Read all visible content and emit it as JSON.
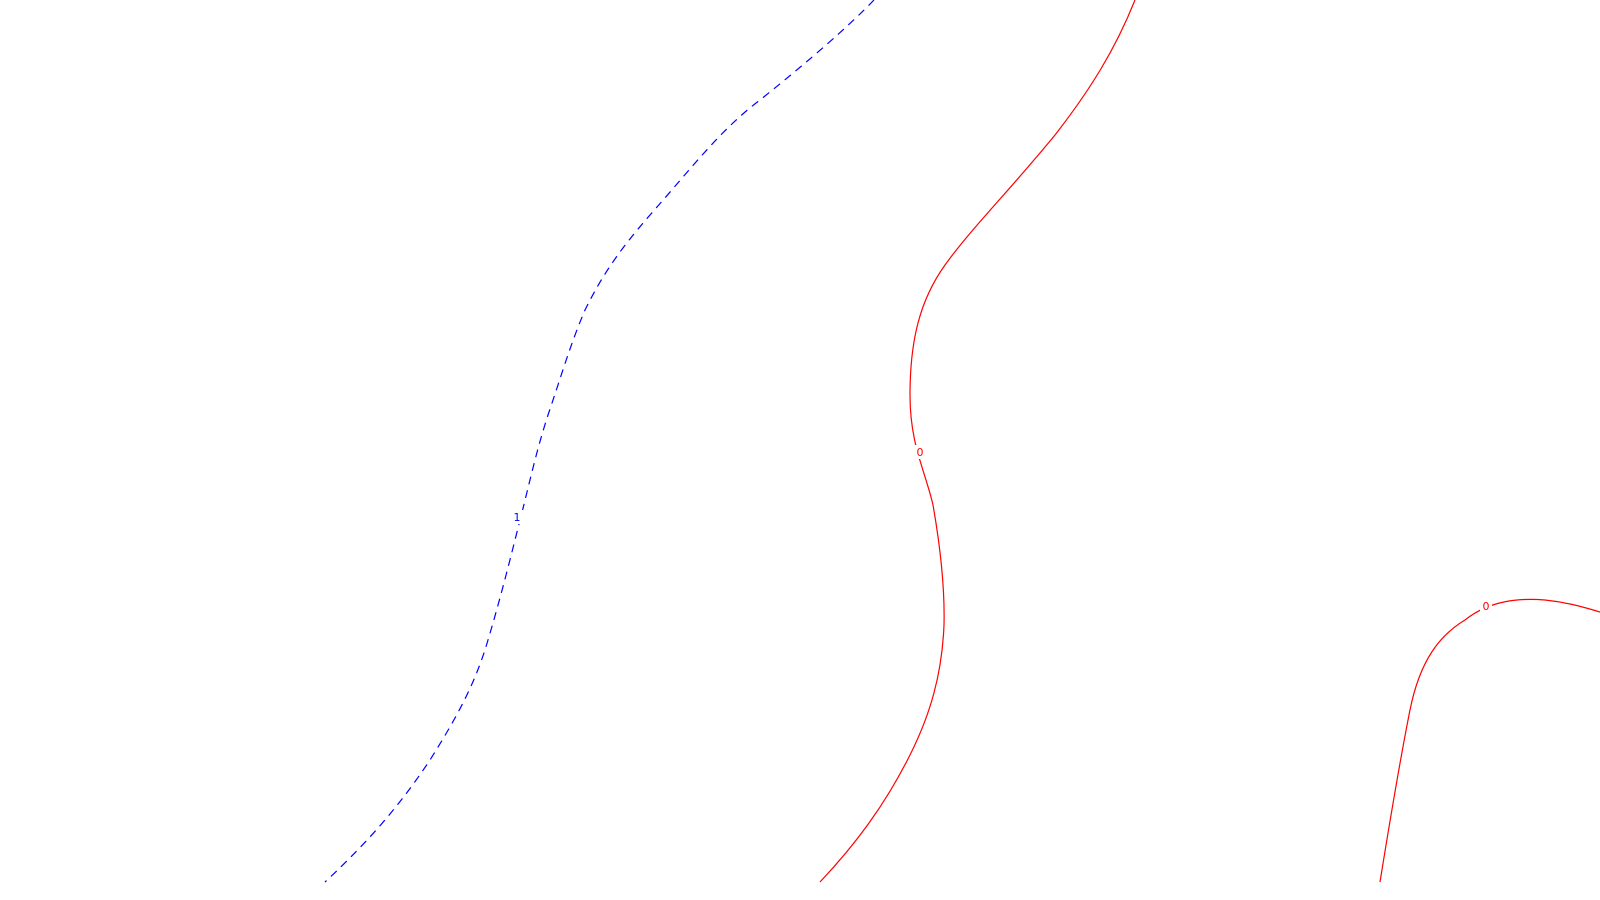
{
  "colors": {
    "background": "#ffffff",
    "positive_contour": "#ff0000",
    "negative_contour": "#0000ff"
  },
  "contours": [
    {
      "id": "blue-dashed",
      "label": "1",
      "style": "dashed",
      "color_key": "negative_contour"
    },
    {
      "id": "red-solid-main",
      "label": "0",
      "style": "solid",
      "color_key": "positive_contour"
    },
    {
      "id": "red-solid-right",
      "label": "0",
      "style": "solid",
      "color_key": "positive_contour"
    }
  ]
}
